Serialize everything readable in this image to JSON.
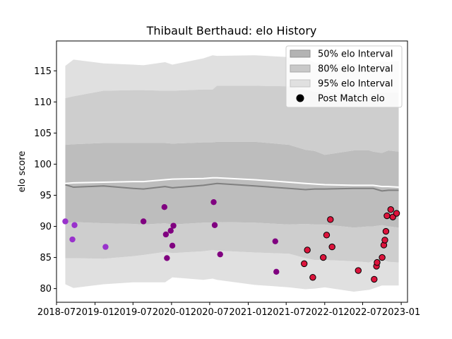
{
  "chart_data": {
    "type": "line",
    "title": "Thibault Berthaud: elo History",
    "xlabel": "",
    "ylabel": "elo score",
    "xlim": [
      "2018-07-01",
      "2023-01-31"
    ],
    "ylim": [
      77.8,
      119.8
    ],
    "grid": false,
    "legend_position": "top-right",
    "x_tick_labels": [
      "2018-07",
      "2019-01",
      "2019-07",
      "2020-01",
      "2020-07",
      "2021-01",
      "2021-07",
      "2022-01",
      "2022-07",
      "2023-01"
    ],
    "x_tick_dates": [
      "2018-07-01",
      "2019-01-01",
      "2019-07-01",
      "2020-01-01",
      "2020-07-01",
      "2021-01-01",
      "2021-07-01",
      "2022-01-01",
      "2022-07-01",
      "2023-01-01"
    ],
    "y_ticks": [
      80,
      85,
      90,
      95,
      100,
      105,
      110,
      115
    ],
    "legend": [
      {
        "label": "50% elo Interval",
        "kind": "patch",
        "color": "#b3b3b3"
      },
      {
        "label": "80% elo Interval",
        "kind": "patch",
        "color": "#c8c8c8"
      },
      {
        "label": "95% elo Interval",
        "kind": "patch",
        "color": "#e0e0e0"
      },
      {
        "label": "Post Match elo",
        "kind": "marker",
        "color": "#000000"
      }
    ],
    "bands": {
      "x": [
        "2018-08-12",
        "2018-09-20",
        "2019-02-10",
        "2019-07-01",
        "2019-08-20",
        "2019-12-01",
        "2020-01-05",
        "2020-06-01",
        "2020-07-15",
        "2020-08-05",
        "2021-02-01",
        "2021-07-15",
        "2021-10-01",
        "2021-11-15",
        "2022-01-01",
        "2022-05-20",
        "2022-08-01",
        "2022-08-20",
        "2022-10-01",
        "2022-11-01",
        "2022-12-20"
      ],
      "p95_upper": [
        115.8,
        116.8,
        116.2,
        116.0,
        115.9,
        116.4,
        116.0,
        117.0,
        117.5,
        117.4,
        117.5,
        117.2,
        117.0,
        116.3,
        116.3,
        116.0,
        115.8,
        116.2,
        116.5,
        116.4,
        116.6
      ],
      "p80_upper": [
        110.6,
        110.9,
        111.8,
        111.9,
        111.9,
        111.8,
        111.8,
        112.0,
        112.0,
        112.6,
        112.6,
        112.5,
        112.0,
        111.6,
        111.6,
        111.5,
        111.2,
        111.4,
        111.5,
        111.5,
        111.5
      ],
      "p50_upper": [
        103.1,
        103.2,
        103.4,
        103.4,
        103.4,
        103.4,
        103.3,
        103.5,
        103.5,
        103.6,
        103.6,
        103.1,
        102.3,
        102.1,
        101.5,
        102.2,
        102.2,
        102.0,
        101.8,
        102.2,
        102.0
      ],
      "mean": [
        96.7,
        96.3,
        96.5,
        96.1,
        96.0,
        96.4,
        96.2,
        96.6,
        96.8,
        96.9,
        96.5,
        96.1,
        95.9,
        96.0,
        96.0,
        96.1,
        96.1,
        96.1,
        95.7,
        95.8,
        95.8
      ],
      "p50_lower": [
        90.5,
        90.7,
        90.5,
        90.4,
        90.3,
        90.5,
        90.3,
        90.6,
        90.6,
        90.7,
        90.6,
        90.3,
        90.4,
        90.3,
        90.3,
        89.8,
        90.0,
        90.0,
        90.2,
        90.0,
        89.8
      ],
      "p80_lower": [
        84.9,
        84.9,
        84.8,
        85.2,
        85.4,
        85.9,
        85.7,
        86.0,
        86.2,
        86.1,
        85.8,
        85.6,
        84.9,
        84.6,
        84.6,
        84.4,
        84.2,
        84.5,
        84.7,
        84.3,
        84.2
      ],
      "p95_lower": [
        80.7,
        80.1,
        80.7,
        81.0,
        81.0,
        81.0,
        81.8,
        81.4,
        81.6,
        81.4,
        80.6,
        80.2,
        79.9,
        80.0,
        80.2,
        79.5,
        79.8,
        80.0,
        80.5,
        80.5,
        80.5
      ]
    },
    "white_line": {
      "x": [
        "2018-08-12",
        "2018-09-20",
        "2019-02-10",
        "2019-07-01",
        "2019-08-20",
        "2019-12-01",
        "2020-01-05",
        "2020-06-01",
        "2020-07-15",
        "2020-08-05",
        "2021-02-01",
        "2021-07-15",
        "2021-10-01",
        "2021-11-15",
        "2022-01-01",
        "2022-05-20",
        "2022-08-01",
        "2022-08-20",
        "2022-10-01",
        "2022-11-01",
        "2022-12-20"
      ],
      "y": [
        96.9,
        97.0,
        97.1,
        97.2,
        97.2,
        97.5,
        97.6,
        97.7,
        97.8,
        97.8,
        97.5,
        97.1,
        96.9,
        96.8,
        96.7,
        96.6,
        96.6,
        96.6,
        96.4,
        96.4,
        96.3
      ]
    },
    "series": [
      {
        "name": "Post Match elo",
        "points": [
          {
            "x": "2018-08-12",
            "y": 90.8,
            "color": "#9932cc"
          },
          {
            "x": "2018-09-15",
            "y": 87.9,
            "color": "#9932cc"
          },
          {
            "x": "2018-09-25",
            "y": 90.2,
            "color": "#9932cc"
          },
          {
            "x": "2019-02-20",
            "y": 86.7,
            "color": "#9932cc"
          },
          {
            "x": "2019-08-20",
            "y": 90.8,
            "color": "#800080"
          },
          {
            "x": "2019-11-28",
            "y": 93.1,
            "color": "#800080"
          },
          {
            "x": "2019-12-05",
            "y": 88.7,
            "color": "#800080"
          },
          {
            "x": "2019-12-10",
            "y": 84.9,
            "color": "#800080"
          },
          {
            "x": "2019-12-28",
            "y": 89.3,
            "color": "#800080"
          },
          {
            "x": "2020-01-05",
            "y": 86.9,
            "color": "#800080"
          },
          {
            "x": "2020-01-10",
            "y": 90.1,
            "color": "#800080"
          },
          {
            "x": "2020-07-20",
            "y": 93.9,
            "color": "#800080"
          },
          {
            "x": "2020-07-25",
            "y": 90.2,
            "color": "#800080"
          },
          {
            "x": "2020-08-20",
            "y": 85.5,
            "color": "#800080"
          },
          {
            "x": "2021-05-10",
            "y": 87.6,
            "color": "#800080"
          },
          {
            "x": "2021-05-15",
            "y": 82.7,
            "color": "#800080"
          },
          {
            "x": "2021-09-25",
            "y": 84.0,
            "color": "#dc143c"
          },
          {
            "x": "2021-10-10",
            "y": 86.2,
            "color": "#dc143c"
          },
          {
            "x": "2021-11-05",
            "y": 81.8,
            "color": "#dc143c"
          },
          {
            "x": "2021-12-25",
            "y": 85.0,
            "color": "#dc143c"
          },
          {
            "x": "2022-01-10",
            "y": 88.6,
            "color": "#dc143c"
          },
          {
            "x": "2022-01-28",
            "y": 91.1,
            "color": "#dc143c"
          },
          {
            "x": "2022-02-05",
            "y": 86.7,
            "color": "#dc143c"
          },
          {
            "x": "2022-06-10",
            "y": 82.9,
            "color": "#dc143c"
          },
          {
            "x": "2022-08-25",
            "y": 81.5,
            "color": "#dc143c"
          },
          {
            "x": "2022-09-05",
            "y": 83.6,
            "color": "#dc143c"
          },
          {
            "x": "2022-09-08",
            "y": 84.2,
            "color": "#dc143c"
          },
          {
            "x": "2022-10-02",
            "y": 85.0,
            "color": "#dc143c"
          },
          {
            "x": "2022-10-10",
            "y": 87.0,
            "color": "#dc143c"
          },
          {
            "x": "2022-10-15",
            "y": 87.8,
            "color": "#dc143c"
          },
          {
            "x": "2022-10-20",
            "y": 89.2,
            "color": "#dc143c"
          },
          {
            "x": "2022-10-25",
            "y": 91.7,
            "color": "#dc143c"
          },
          {
            "x": "2022-11-12",
            "y": 92.7,
            "color": "#dc143c"
          },
          {
            "x": "2022-11-22",
            "y": 91.5,
            "color": "#dc143c"
          },
          {
            "x": "2022-12-10",
            "y": 92.1,
            "color": "#dc143c"
          }
        ]
      }
    ]
  }
}
